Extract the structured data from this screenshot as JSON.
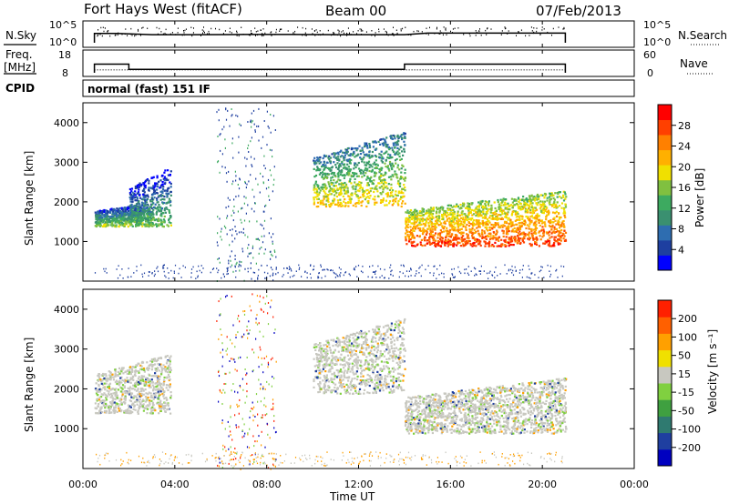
{
  "header": {
    "station": "Fort Hays West (fitACF)",
    "beam": "Beam 00",
    "date": "07/Feb/2013"
  },
  "panels": {
    "nsky_label": "N.Sky",
    "nsearch_label": "N.Search",
    "freq_label_1": "Freq.",
    "freq_label_2": "[MHz]",
    "nave_label": "Nave",
    "cpid_label": "CPID",
    "cpid_value": "normal (fast) 151 IF",
    "noise_left_ticks": [
      "10^5",
      "10^0"
    ],
    "noise_right_ticks": [
      "10^5",
      "10^0"
    ],
    "freq_left_ticks": [
      "18",
      "8"
    ],
    "nave_right_ticks": [
      "60",
      "0"
    ]
  },
  "colorbars": {
    "power": {
      "label": "Power [dB]",
      "ticks": [
        "28",
        "24",
        "20",
        "16",
        "12",
        "8",
        "4"
      ],
      "colors": [
        "#0000ff",
        "#1e3fa0",
        "#2e6db0",
        "#3a9070",
        "#3daa60",
        "#80c040",
        "#f0e000",
        "#ffb000",
        "#ff8000",
        "#ff4000",
        "#ff0000"
      ]
    },
    "velocity": {
      "label": "Velocity [m s⁻¹]",
      "ticks": [
        "200",
        "100",
        "50",
        "15",
        "-15",
        "-50",
        "-100",
        "-200"
      ],
      "colors": [
        "#0000c0",
        "#1f3fa0",
        "#2f7a70",
        "#3fa040",
        "#80d040",
        "#c8c8c0",
        "#f0e000",
        "#ffa000",
        "#ff6000",
        "#ff2000"
      ]
    }
  },
  "axes": {
    "ylabel": "Slant Range [km]",
    "xlabel": "Time UT",
    "yticks": [
      "4000",
      "3000",
      "2000",
      "1000"
    ],
    "xticks": [
      "00:00",
      "04:00",
      "08:00",
      "12:00",
      "16:00",
      "20:00",
      "00:00"
    ]
  },
  "chart_data": [
    {
      "type": "line",
      "title": "N.Sky / N.Search",
      "x_unit": "hours UT",
      "xlim": [
        0,
        24
      ],
      "series": [
        {
          "name": "N.Sky",
          "x": [
            0.5,
            1.5,
            3.0,
            5.0,
            7.0,
            9.0,
            11.0,
            13.0,
            14.0,
            15.0,
            17.0,
            19.0,
            21.0
          ],
          "values": [
            1500,
            1500,
            600,
            600,
            700,
            700,
            600,
            600,
            600,
            2000,
            2000,
            2000,
            2000
          ]
        }
      ],
      "ylim": [
        1,
        100000
      ]
    },
    {
      "type": "line",
      "title": "Freq. [MHz] / Nave",
      "xlim": [
        0,
        24
      ],
      "series": [
        {
          "name": "Freq.",
          "x": [
            0.5,
            2.0,
            2.0,
            14.0,
            14.0,
            21.0
          ],
          "values": [
            13,
            13,
            10,
            10,
            13,
            13
          ]
        },
        {
          "name": "Nave",
          "x": [
            0.5,
            21.0
          ],
          "values": [
            15,
            15
          ]
        }
      ],
      "ylim": [
        8,
        18
      ]
    },
    {
      "type": "heatmap",
      "title": "Power [dB]",
      "xlabel": "Time UT",
      "ylabel": "Slant Range [km]",
      "xlim": [
        0,
        24
      ],
      "ylim": [
        0,
        4500
      ],
      "regions": [
        {
          "t0": 0.5,
          "t1": 3.0,
          "r_top": 2000,
          "r_bottom": 1400,
          "power": 10
        },
        {
          "t0": 2.0,
          "t1": 3.8,
          "r_top": 2900,
          "r_bottom": 1400,
          "power": 8
        },
        {
          "t0": 10.0,
          "t1": 14.0,
          "r_top": 3800,
          "r_bottom": 1900,
          "power": 14
        },
        {
          "t0": 14.0,
          "t1": 21.0,
          "r_top": 2300,
          "r_bottom": 900,
          "power": 22
        }
      ]
    },
    {
      "type": "heatmap",
      "title": "Velocity [m s⁻¹]",
      "xlabel": "Time UT",
      "ylabel": "Slant Range [km]",
      "xlim": [
        0,
        24
      ],
      "ylim": [
        0,
        4500
      ],
      "regions": [
        {
          "t0": 0.5,
          "t1": 3.8,
          "r_top": 2900,
          "r_bottom": 1400,
          "velocity": 0
        },
        {
          "t0": 10.0,
          "t1": 14.0,
          "r_top": 3800,
          "r_bottom": 1900,
          "velocity": 30
        },
        {
          "t0": 14.0,
          "t1": 21.0,
          "r_top": 2300,
          "r_bottom": 900,
          "velocity": 0
        }
      ]
    }
  ]
}
